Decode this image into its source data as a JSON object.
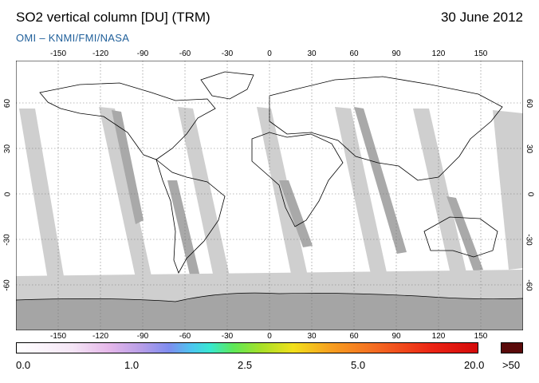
{
  "header": {
    "title": "SO2 vertical column [DU] (TRM)",
    "date": "30 June 2012",
    "credit": "OMI  –  KNMI/FMI/NASA"
  },
  "map": {
    "lon_ticks": [
      "-150",
      "-120",
      "-90",
      "-60",
      "-30",
      "0",
      "30",
      "60",
      "90",
      "120",
      "150"
    ],
    "lat_ticks": [
      "60",
      "30",
      "0",
      "-30",
      "-60"
    ],
    "colors": {
      "missing_swath": "#cfcfcf",
      "overlap_swath": "#a9a9a9",
      "polar_night": "#bdbdbd",
      "coast": "#000000"
    }
  },
  "colorbar": {
    "labels": [
      "0.0",
      "1.0",
      "2.5",
      "5.0",
      "20.0"
    ],
    "overflow_label": ">50"
  }
}
